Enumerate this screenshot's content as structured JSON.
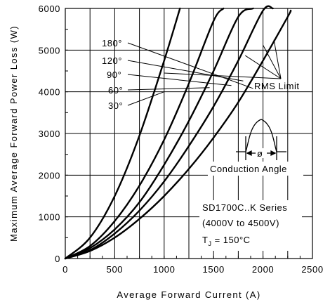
{
  "chart_data": {
    "type": "line",
    "xlabel": "Average Forward Current (A)",
    "ylabel": "Maximum Average Forward Power Loss (W)",
    "xlim": [
      0,
      2500
    ],
    "ylim": [
      0,
      6000
    ],
    "xticks": [
      "0",
      "500",
      "1000",
      "1500",
      "2000",
      "2500"
    ],
    "yticks": [
      "0",
      "1000",
      "2000",
      "3000",
      "4000",
      "5000",
      "6000"
    ],
    "grid": true,
    "series": [
      {
        "name": "180°",
        "x": [
          0,
          250,
          500,
          750,
          1000,
          1250,
          1500,
          1750,
          2000,
          2250,
          2280
        ],
        "y": [
          0,
          180,
          500,
          950,
          1500,
          2150,
          2900,
          3750,
          4750,
          5800,
          5950
        ]
      },
      {
        "name": "120°",
        "x": [
          0,
          250,
          500,
          750,
          1000,
          1250,
          1500,
          1750,
          2000,
          2100
        ],
        "y": [
          0,
          200,
          600,
          1150,
          1850,
          2700,
          3650,
          4750,
          5950,
          6000
        ]
      },
      {
        "name": "90°",
        "x": [
          0,
          250,
          500,
          750,
          1000,
          1250,
          1500,
          1750,
          1900
        ],
        "y": [
          0,
          250,
          700,
          1350,
          2250,
          3300,
          4500,
          5800,
          6000
        ]
      },
      {
        "name": "60°",
        "x": [
          0,
          250,
          500,
          750,
          1000,
          1250,
          1500,
          1600
        ],
        "y": [
          0,
          300,
          900,
          1750,
          2850,
          4200,
          5700,
          6000
        ]
      },
      {
        "name": "30°",
        "x": [
          0,
          250,
          500,
          750,
          1000,
          1160
        ],
        "y": [
          0,
          500,
          1500,
          2950,
          4750,
          6000
        ]
      }
    ],
    "curve_labels": [
      "180°",
      "120°",
      "90°",
      "60°",
      "30°"
    ],
    "annotations": {
      "rms_limit": "RMS Limit",
      "conduction_angle": "Conduction Angle",
      "phi": "ø",
      "device_line1": "SD1700C..K Series",
      "device_line2": "(4000V to 4500V)",
      "tj_prefix": "T",
      "tj_sub": "J",
      "tj_value": " = 150°C"
    }
  }
}
